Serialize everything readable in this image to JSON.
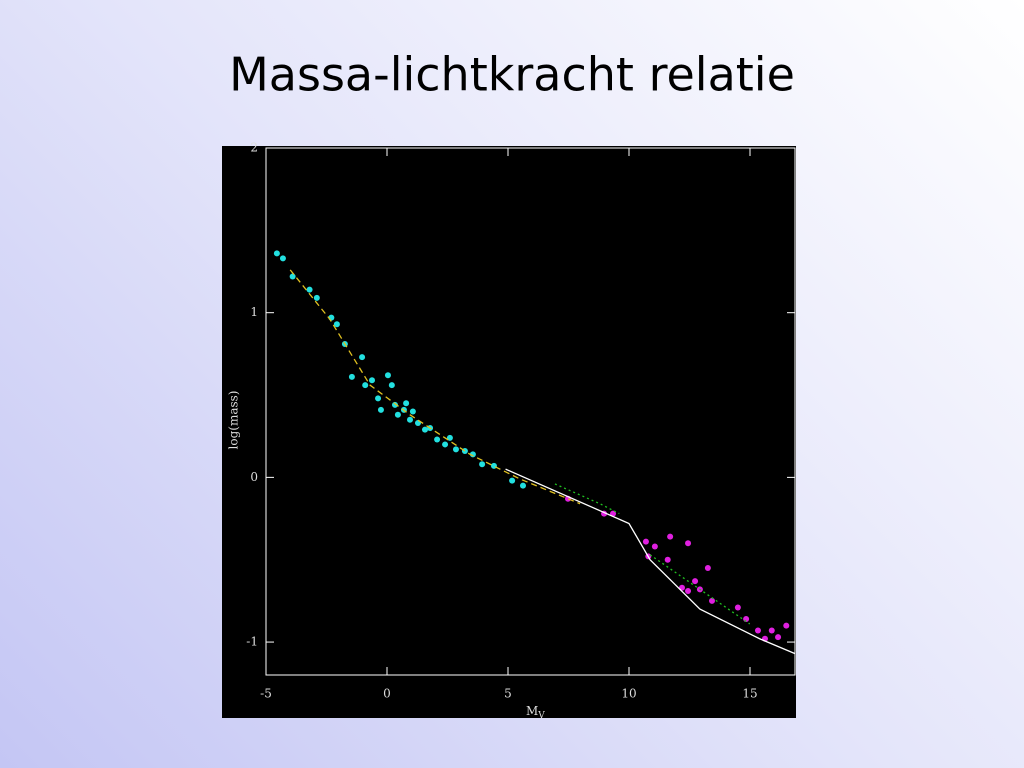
{
  "chart_data": {
    "type": "scatter",
    "title": "Massa-lichtkracht relatie",
    "xlabel": {
      "main": "M",
      "subscript": "V"
    },
    "ylabel": "log(mass)",
    "xlim": [
      -5,
      16.86
    ],
    "ylim": [
      -1.2,
      2
    ],
    "xticks": [
      -5,
      0,
      5,
      10,
      15
    ],
    "yticks": [
      -1,
      0,
      1,
      2
    ],
    "series": [
      {
        "mode": "points",
        "color": "#22e0e0",
        "x": [
          -4.55,
          -4.3,
          -3.9,
          -3.2,
          -2.9,
          -2.3,
          -2.07,
          -1.74,
          -1.45,
          -1.03,
          -0.9,
          -0.62,
          -0.37,
          -0.25,
          0.04,
          0.2,
          0.33,
          0.45,
          0.7,
          0.79,
          0.95,
          1.07,
          1.28,
          1.57,
          1.78,
          2.07,
          2.4,
          2.6,
          2.85,
          3.22,
          3.55,
          3.93,
          4.42,
          5.17,
          5.62
        ],
        "values": [
          1.36,
          1.33,
          1.22,
          1.14,
          1.09,
          0.97,
          0.93,
          0.81,
          0.61,
          0.73,
          0.56,
          0.59,
          0.48,
          0.41,
          0.62,
          0.56,
          0.44,
          0.38,
          0.41,
          0.45,
          0.35,
          0.4,
          0.33,
          0.29,
          0.3,
          0.23,
          0.2,
          0.24,
          0.17,
          0.16,
          0.14,
          0.08,
          0.07,
          -0.02,
          -0.05
        ]
      },
      {
        "mode": "points",
        "color": "#e020e0",
        "x": [
          7.48,
          8.97,
          9.34,
          10.7,
          10.8,
          11.07,
          11.6,
          11.7,
          12.44,
          12.19,
          12.44,
          12.73,
          12.93,
          13.26,
          13.43,
          14.5,
          14.84,
          15.33,
          15.62,
          15.9,
          16.16,
          16.5
        ],
        "values": [
          -0.13,
          -0.22,
          -0.22,
          -0.39,
          -0.48,
          -0.42,
          -0.5,
          -0.36,
          -0.4,
          -0.67,
          -0.69,
          -0.63,
          -0.68,
          -0.55,
          -0.75,
          -0.79,
          -0.86,
          -0.93,
          -0.98,
          -0.93,
          -0.97,
          -0.9
        ]
      },
      {
        "mode": "line",
        "color": "#ffffff",
        "dash": "none",
        "x": [
          4.9,
          10.0,
          10.87,
          12.93,
          15.4,
          16.86
        ],
        "values": [
          0.05,
          -0.28,
          -0.5,
          -0.8,
          -0.98,
          -1.07
        ]
      },
      {
        "mode": "line",
        "color": "#e0c020",
        "dash": "6 4",
        "x": [
          -4.0,
          -2.36,
          -0.7,
          0.95,
          3.43,
          5.5,
          7.98
        ],
        "values": [
          1.26,
          0.96,
          0.56,
          0.38,
          0.14,
          -0.01,
          -0.16
        ]
      },
      {
        "mode": "line",
        "color": "#20c020",
        "dash": "2 3",
        "x": [
          6.94,
          8.8,
          9.6,
          null,
          10.87,
          12.93,
          14.99
        ],
        "values": [
          -0.04,
          -0.16,
          -0.22,
          null,
          -0.47,
          -0.68,
          -0.89
        ]
      }
    ]
  }
}
